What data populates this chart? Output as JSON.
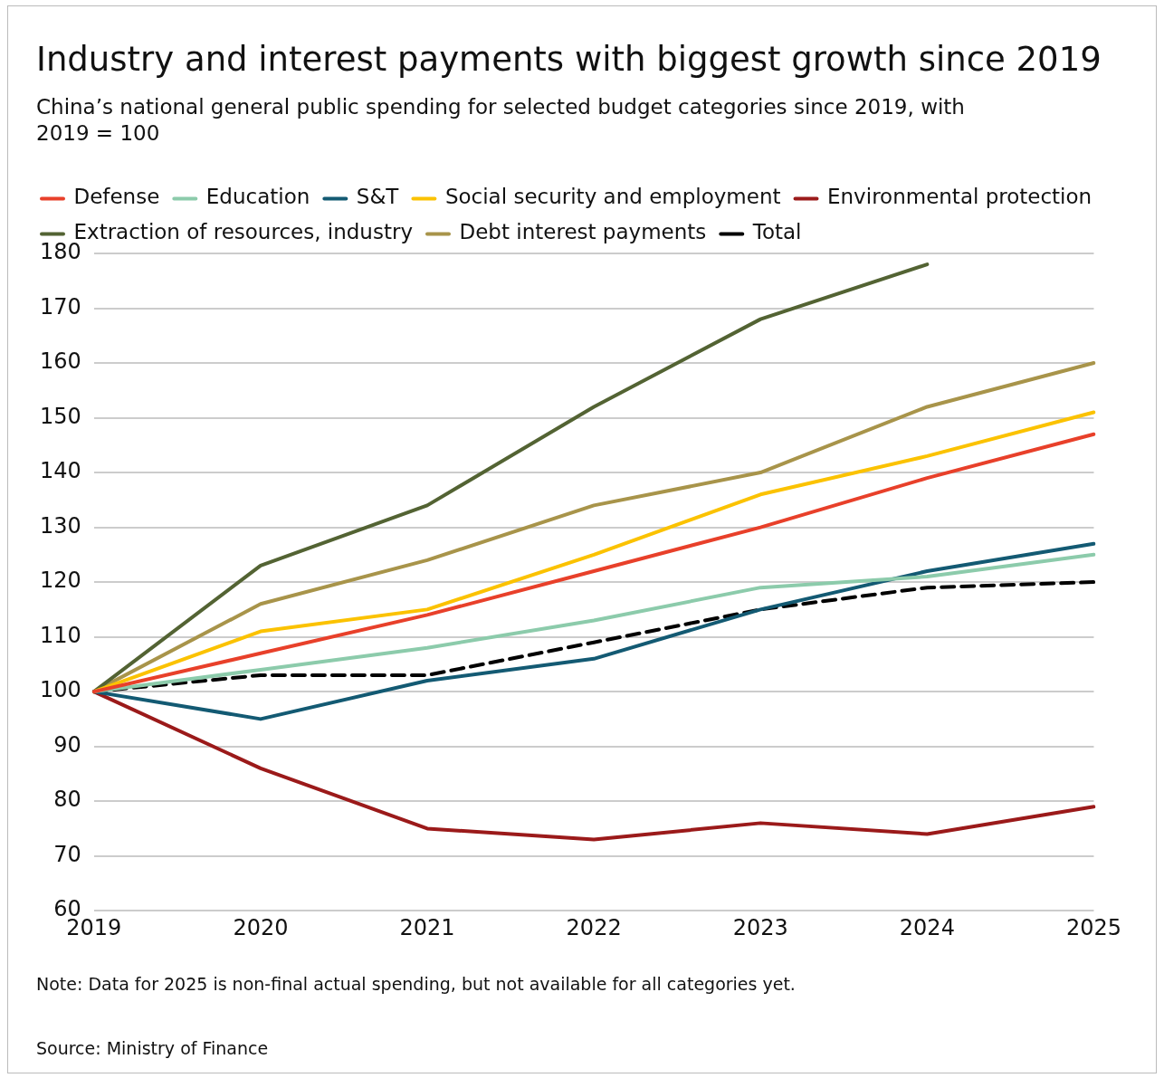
{
  "chart_data": {
    "type": "line",
    "title": "Industry and interest payments with biggest growth since 2019",
    "subtitle": "China’s national general public spending for selected budget categories since 2019, with 2019 = 100",
    "categories": [
      "2019",
      "2020",
      "2021",
      "2022",
      "2023",
      "2024",
      "2025"
    ],
    "series": [
      {
        "name": "Defense",
        "color": "#e8402a",
        "values": [
          100,
          107,
          114,
          122,
          130,
          139,
          147
        ]
      },
      {
        "name": "Education",
        "color": "#8ccbab",
        "values": [
          100,
          104,
          108,
          113,
          119,
          121,
          125
        ]
      },
      {
        "name": "S&T",
        "color": "#135a73",
        "values": [
          100,
          95,
          102,
          106,
          115,
          122,
          127
        ]
      },
      {
        "name": "Social security and employment",
        "color": "#fbc200",
        "values": [
          100,
          111,
          115,
          125,
          136,
          143,
          151
        ]
      },
      {
        "name": "Environmental protection",
        "color": "#9b1a1a",
        "values": [
          100,
          86,
          75,
          73,
          76,
          74,
          79
        ]
      },
      {
        "name": "Extraction of resources, industry",
        "color": "#536333",
        "values": [
          100,
          123,
          134,
          152,
          168,
          178,
          null
        ]
      },
      {
        "name": "Debt interest payments",
        "color": "#a8944a",
        "values": [
          100,
          116,
          124,
          134,
          140,
          152,
          160
        ]
      },
      {
        "name": "Total",
        "color": "#000000",
        "line_style": "dashed",
        "values": [
          100,
          103,
          103,
          109,
          115,
          119,
          120
        ]
      }
    ],
    "ylim": [
      60,
      180
    ],
    "yticks": [
      60,
      70,
      80,
      90,
      100,
      110,
      120,
      130,
      140,
      150,
      160,
      170,
      180
    ],
    "grid": "y",
    "legend": "top left",
    "marker": "none",
    "annotations": [
      "Note: Data for 2025 is non-final actual spending, but not available for all categories yet.",
      "Source: Ministry of Finance"
    ]
  }
}
